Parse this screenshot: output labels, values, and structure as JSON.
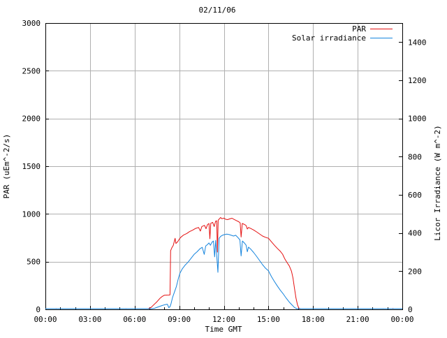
{
  "title": "02/11/06",
  "legend": {
    "items": [
      {
        "label": "PAR",
        "color": "#e51010"
      },
      {
        "label": "Solar irradiance",
        "color": "#1584dd"
      }
    ]
  },
  "axes": {
    "x": {
      "title": "Time GMT",
      "range_hours": [
        0,
        24
      ],
      "major_step_hours": 3,
      "minor_step_hours": 1,
      "tick_labels": [
        "00:00",
        "03:00",
        "06:00",
        "09:00",
        "12:00",
        "15:00",
        "18:00",
        "21:00",
        "00:00"
      ]
    },
    "y_left": {
      "title": "PAR (uEm^-2/s)",
      "range": [
        0,
        3000
      ],
      "tick_step": 500,
      "tick_labels": [
        "0",
        "500",
        "1000",
        "1500",
        "2000",
        "2500",
        "3000"
      ]
    },
    "y_right": {
      "title": "Licor Irradiance (W m^-2)",
      "range": [
        0,
        1500
      ],
      "tick_step": 200,
      "tick_labels": [
        "0",
        "200",
        "400",
        "600",
        "800",
        "1000",
        "1200",
        "1400"
      ]
    }
  },
  "colors": {
    "border": "#000000",
    "grid": "#b0b0b0",
    "text": "#000000",
    "background": "#ffffff"
  },
  "chart_data": {
    "type": "line",
    "title": "02/11/06",
    "xlabel": "Time GMT",
    "x_unit": "hours GMT",
    "grid": true,
    "legend_position": "top-right-inside",
    "x_range_hours": [
      0,
      24
    ],
    "y_left_label": "PAR (uEm^-2/s)",
    "y_left_range": [
      0,
      3000
    ],
    "y_right_label": "Licor Irradiance (W m^-2)",
    "y_right_range": [
      0,
      1500
    ],
    "series": [
      {
        "name": "PAR",
        "y_axis": "left",
        "unit": "uEm^-2/s",
        "color": "#e51010",
        "points": [
          [
            0,
            0
          ],
          [
            0.7,
            0
          ],
          [
            0.72,
            9
          ],
          [
            0.75,
            0
          ],
          [
            5.4,
            0
          ],
          [
            5.42,
            8
          ],
          [
            5.45,
            0
          ],
          [
            6.9,
            0
          ],
          [
            7.1,
            20
          ],
          [
            7.3,
            50
          ],
          [
            7.5,
            80
          ],
          [
            7.7,
            115
          ],
          [
            7.85,
            135
          ],
          [
            8.0,
            148
          ],
          [
            8.3,
            150
          ],
          [
            8.38,
            152
          ],
          [
            8.42,
            615
          ],
          [
            8.5,
            645
          ],
          [
            8.6,
            670
          ],
          [
            8.72,
            745
          ],
          [
            8.78,
            690
          ],
          [
            8.9,
            710
          ],
          [
            9.0,
            735
          ],
          [
            9.1,
            755
          ],
          [
            9.3,
            780
          ],
          [
            9.5,
            795
          ],
          [
            9.7,
            815
          ],
          [
            9.9,
            830
          ],
          [
            10.1,
            848
          ],
          [
            10.3,
            858
          ],
          [
            10.42,
            820
          ],
          [
            10.52,
            868
          ],
          [
            10.7,
            880
          ],
          [
            10.8,
            845
          ],
          [
            10.9,
            888
          ],
          [
            11.0,
            900
          ],
          [
            11.06,
            740
          ],
          [
            11.12,
            902
          ],
          [
            11.25,
            912
          ],
          [
            11.35,
            868
          ],
          [
            11.45,
            925
          ],
          [
            11.52,
            928
          ],
          [
            11.57,
            600
          ],
          [
            11.62,
            935
          ],
          [
            11.7,
            948
          ],
          [
            11.78,
            962
          ],
          [
            11.88,
            950
          ],
          [
            12.0,
            956
          ],
          [
            12.12,
            944
          ],
          [
            12.25,
            940
          ],
          [
            12.4,
            948
          ],
          [
            12.55,
            955
          ],
          [
            12.7,
            942
          ],
          [
            12.85,
            930
          ],
          [
            13.0,
            918
          ],
          [
            13.1,
            905
          ],
          [
            13.16,
            758
          ],
          [
            13.24,
            900
          ],
          [
            13.4,
            888
          ],
          [
            13.5,
            878
          ],
          [
            13.58,
            842
          ],
          [
            13.66,
            858
          ],
          [
            13.8,
            848
          ],
          [
            14.0,
            832
          ],
          [
            14.2,
            812
          ],
          [
            14.4,
            790
          ],
          [
            14.6,
            768
          ],
          [
            14.8,
            755
          ],
          [
            15.0,
            745
          ],
          [
            15.2,
            708
          ],
          [
            15.4,
            672
          ],
          [
            15.6,
            638
          ],
          [
            15.8,
            608
          ],
          [
            15.95,
            578
          ],
          [
            16.1,
            528
          ],
          [
            16.25,
            490
          ],
          [
            16.4,
            455
          ],
          [
            16.55,
            398
          ],
          [
            16.65,
            328
          ],
          [
            16.75,
            222
          ],
          [
            16.85,
            118
          ],
          [
            16.95,
            48
          ],
          [
            17.05,
            12
          ],
          [
            17.15,
            0
          ],
          [
            22.7,
            0
          ],
          [
            22.72,
            8
          ],
          [
            22.75,
            0
          ],
          [
            23.35,
            0
          ],
          [
            23.37,
            10
          ],
          [
            23.4,
            0
          ],
          [
            24,
            0
          ]
        ]
      },
      {
        "name": "Solar irradiance",
        "y_axis": "right",
        "unit": "W m^-2",
        "color": "#1584dd",
        "points": [
          [
            0,
            0
          ],
          [
            7.15,
            0
          ],
          [
            7.35,
            6
          ],
          [
            7.6,
            13
          ],
          [
            7.85,
            20
          ],
          [
            8.05,
            25
          ],
          [
            8.2,
            27
          ],
          [
            8.3,
            9
          ],
          [
            8.38,
            14
          ],
          [
            8.45,
            30
          ],
          [
            8.55,
            62
          ],
          [
            8.65,
            85
          ],
          [
            8.8,
            118
          ],
          [
            8.95,
            165
          ],
          [
            9.05,
            190
          ],
          [
            9.2,
            212
          ],
          [
            9.4,
            232
          ],
          [
            9.6,
            248
          ],
          [
            9.8,
            268
          ],
          [
            10.0,
            288
          ],
          [
            10.2,
            302
          ],
          [
            10.4,
            318
          ],
          [
            10.55,
            325
          ],
          [
            10.68,
            288
          ],
          [
            10.78,
            332
          ],
          [
            10.9,
            340
          ],
          [
            11.0,
            348
          ],
          [
            11.1,
            336
          ],
          [
            11.2,
            352
          ],
          [
            11.3,
            358
          ],
          [
            11.38,
            275
          ],
          [
            11.45,
            362
          ],
          [
            11.55,
            252
          ],
          [
            11.6,
            194
          ],
          [
            11.68,
            372
          ],
          [
            11.78,
            382
          ],
          [
            11.9,
            388
          ],
          [
            12.05,
            392
          ],
          [
            12.2,
            394
          ],
          [
            12.35,
            392
          ],
          [
            12.5,
            388
          ],
          [
            12.65,
            384
          ],
          [
            12.8,
            388
          ],
          [
            12.95,
            376
          ],
          [
            13.08,
            364
          ],
          [
            13.16,
            280
          ],
          [
            13.25,
            358
          ],
          [
            13.4,
            346
          ],
          [
            13.5,
            336
          ],
          [
            13.58,
            302
          ],
          [
            13.66,
            326
          ],
          [
            13.8,
            316
          ],
          [
            14.0,
            298
          ],
          [
            14.2,
            278
          ],
          [
            14.4,
            256
          ],
          [
            14.6,
            234
          ],
          [
            14.8,
            216
          ],
          [
            15.0,
            202
          ],
          [
            15.2,
            172
          ],
          [
            15.4,
            146
          ],
          [
            15.6,
            122
          ],
          [
            15.8,
            100
          ],
          [
            16.0,
            80
          ],
          [
            16.2,
            58
          ],
          [
            16.4,
            38
          ],
          [
            16.6,
            22
          ],
          [
            16.75,
            10
          ],
          [
            16.9,
            0
          ],
          [
            24,
            0
          ]
        ]
      }
    ]
  }
}
